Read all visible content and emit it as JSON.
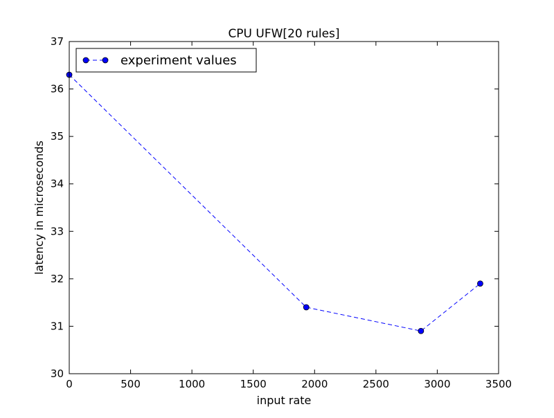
{
  "chart_data": {
    "type": "line",
    "title": "CPU UFW[20 rules]",
    "xlabel": "input rate",
    "ylabel": "latency in microseconds",
    "xlim": [
      0,
      3500
    ],
    "ylim": [
      30,
      37
    ],
    "x_ticks": [
      0,
      500,
      1000,
      1500,
      2000,
      2500,
      3000,
      3500
    ],
    "y_ticks": [
      30,
      31,
      32,
      33,
      34,
      35,
      36,
      37
    ],
    "x_tick_labels": [
      "0",
      "500",
      "1000",
      "1500",
      "2000",
      "2500",
      "3000",
      "3500"
    ],
    "y_tick_labels": [
      "30",
      "31",
      "32",
      "33",
      "34",
      "35",
      "36",
      "37"
    ],
    "grid": false,
    "legend": {
      "position": "top-left"
    },
    "series": [
      {
        "name": "experiment values",
        "color": "#0000ff",
        "line_style": "dashed",
        "marker": "circle",
        "x": [
          0,
          1932,
          2867,
          3350
        ],
        "y": [
          36.3,
          31.4,
          30.9,
          31.9
        ]
      }
    ]
  }
}
